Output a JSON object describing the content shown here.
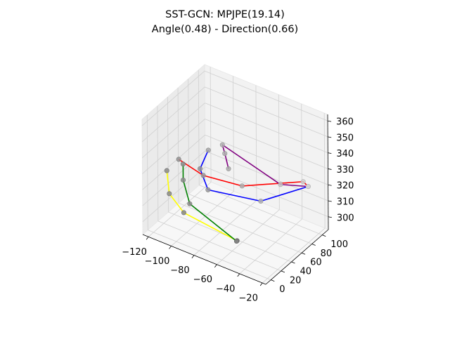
{
  "chart_data": {
    "type": "scatter",
    "title": "SST-GCN: MPJPE(19.14)",
    "subtitle": "Angle(0.48) - Direction(0.66)",
    "projection": "3d",
    "xlabel": "",
    "ylabel": "",
    "zlabel": "",
    "xlim": [
      -125,
      -17
    ],
    "ylim": [
      -10,
      112
    ],
    "zlim": [
      292,
      364
    ],
    "x_ticks": [
      -120,
      -100,
      -80,
      -60,
      -40,
      -20
    ],
    "y_ticks": [
      0,
      20,
      40,
      60,
      80,
      100
    ],
    "z_ticks": [
      300,
      310,
      320,
      330,
      340,
      350,
      360
    ],
    "grid": true,
    "series": [
      {
        "color": "#ffff00",
        "points": [
          [
            -118,
            22,
            325
          ],
          [
            -115,
            20,
            312
          ],
          [
            -101,
            17,
            305
          ],
          [
            -52,
            12,
            303
          ]
        ]
      },
      {
        "color": "#008000",
        "points": [
          [
            -105,
            25,
            332
          ],
          [
            -105,
            25,
            322
          ],
          [
            -98,
            22,
            310
          ],
          [
            -52,
            11,
            303
          ]
        ]
      },
      {
        "color": "#0000ff",
        "points": [
          [
            -30,
            102,
            318
          ],
          [
            -55,
            65,
            312
          ],
          [
            -90,
            40,
            316
          ],
          [
            -96,
            38,
            328
          ],
          [
            -95,
            52,
            336
          ]
        ]
      },
      {
        "color": "#ff0000",
        "points": [
          [
            -112,
            32,
            331
          ],
          [
            -95,
            42,
            323
          ],
          [
            -70,
            62,
            318
          ],
          [
            -33,
            99,
            321
          ],
          [
            -30,
            102,
            318
          ]
        ]
      },
      {
        "color": "#800080",
        "points": [
          [
            -80,
            58,
            327
          ],
          [
            -85,
            62,
            334
          ],
          [
            -88,
            64,
            338
          ],
          [
            -48,
            88,
            318
          ],
          [
            -30,
            102,
            318
          ]
        ]
      }
    ]
  }
}
